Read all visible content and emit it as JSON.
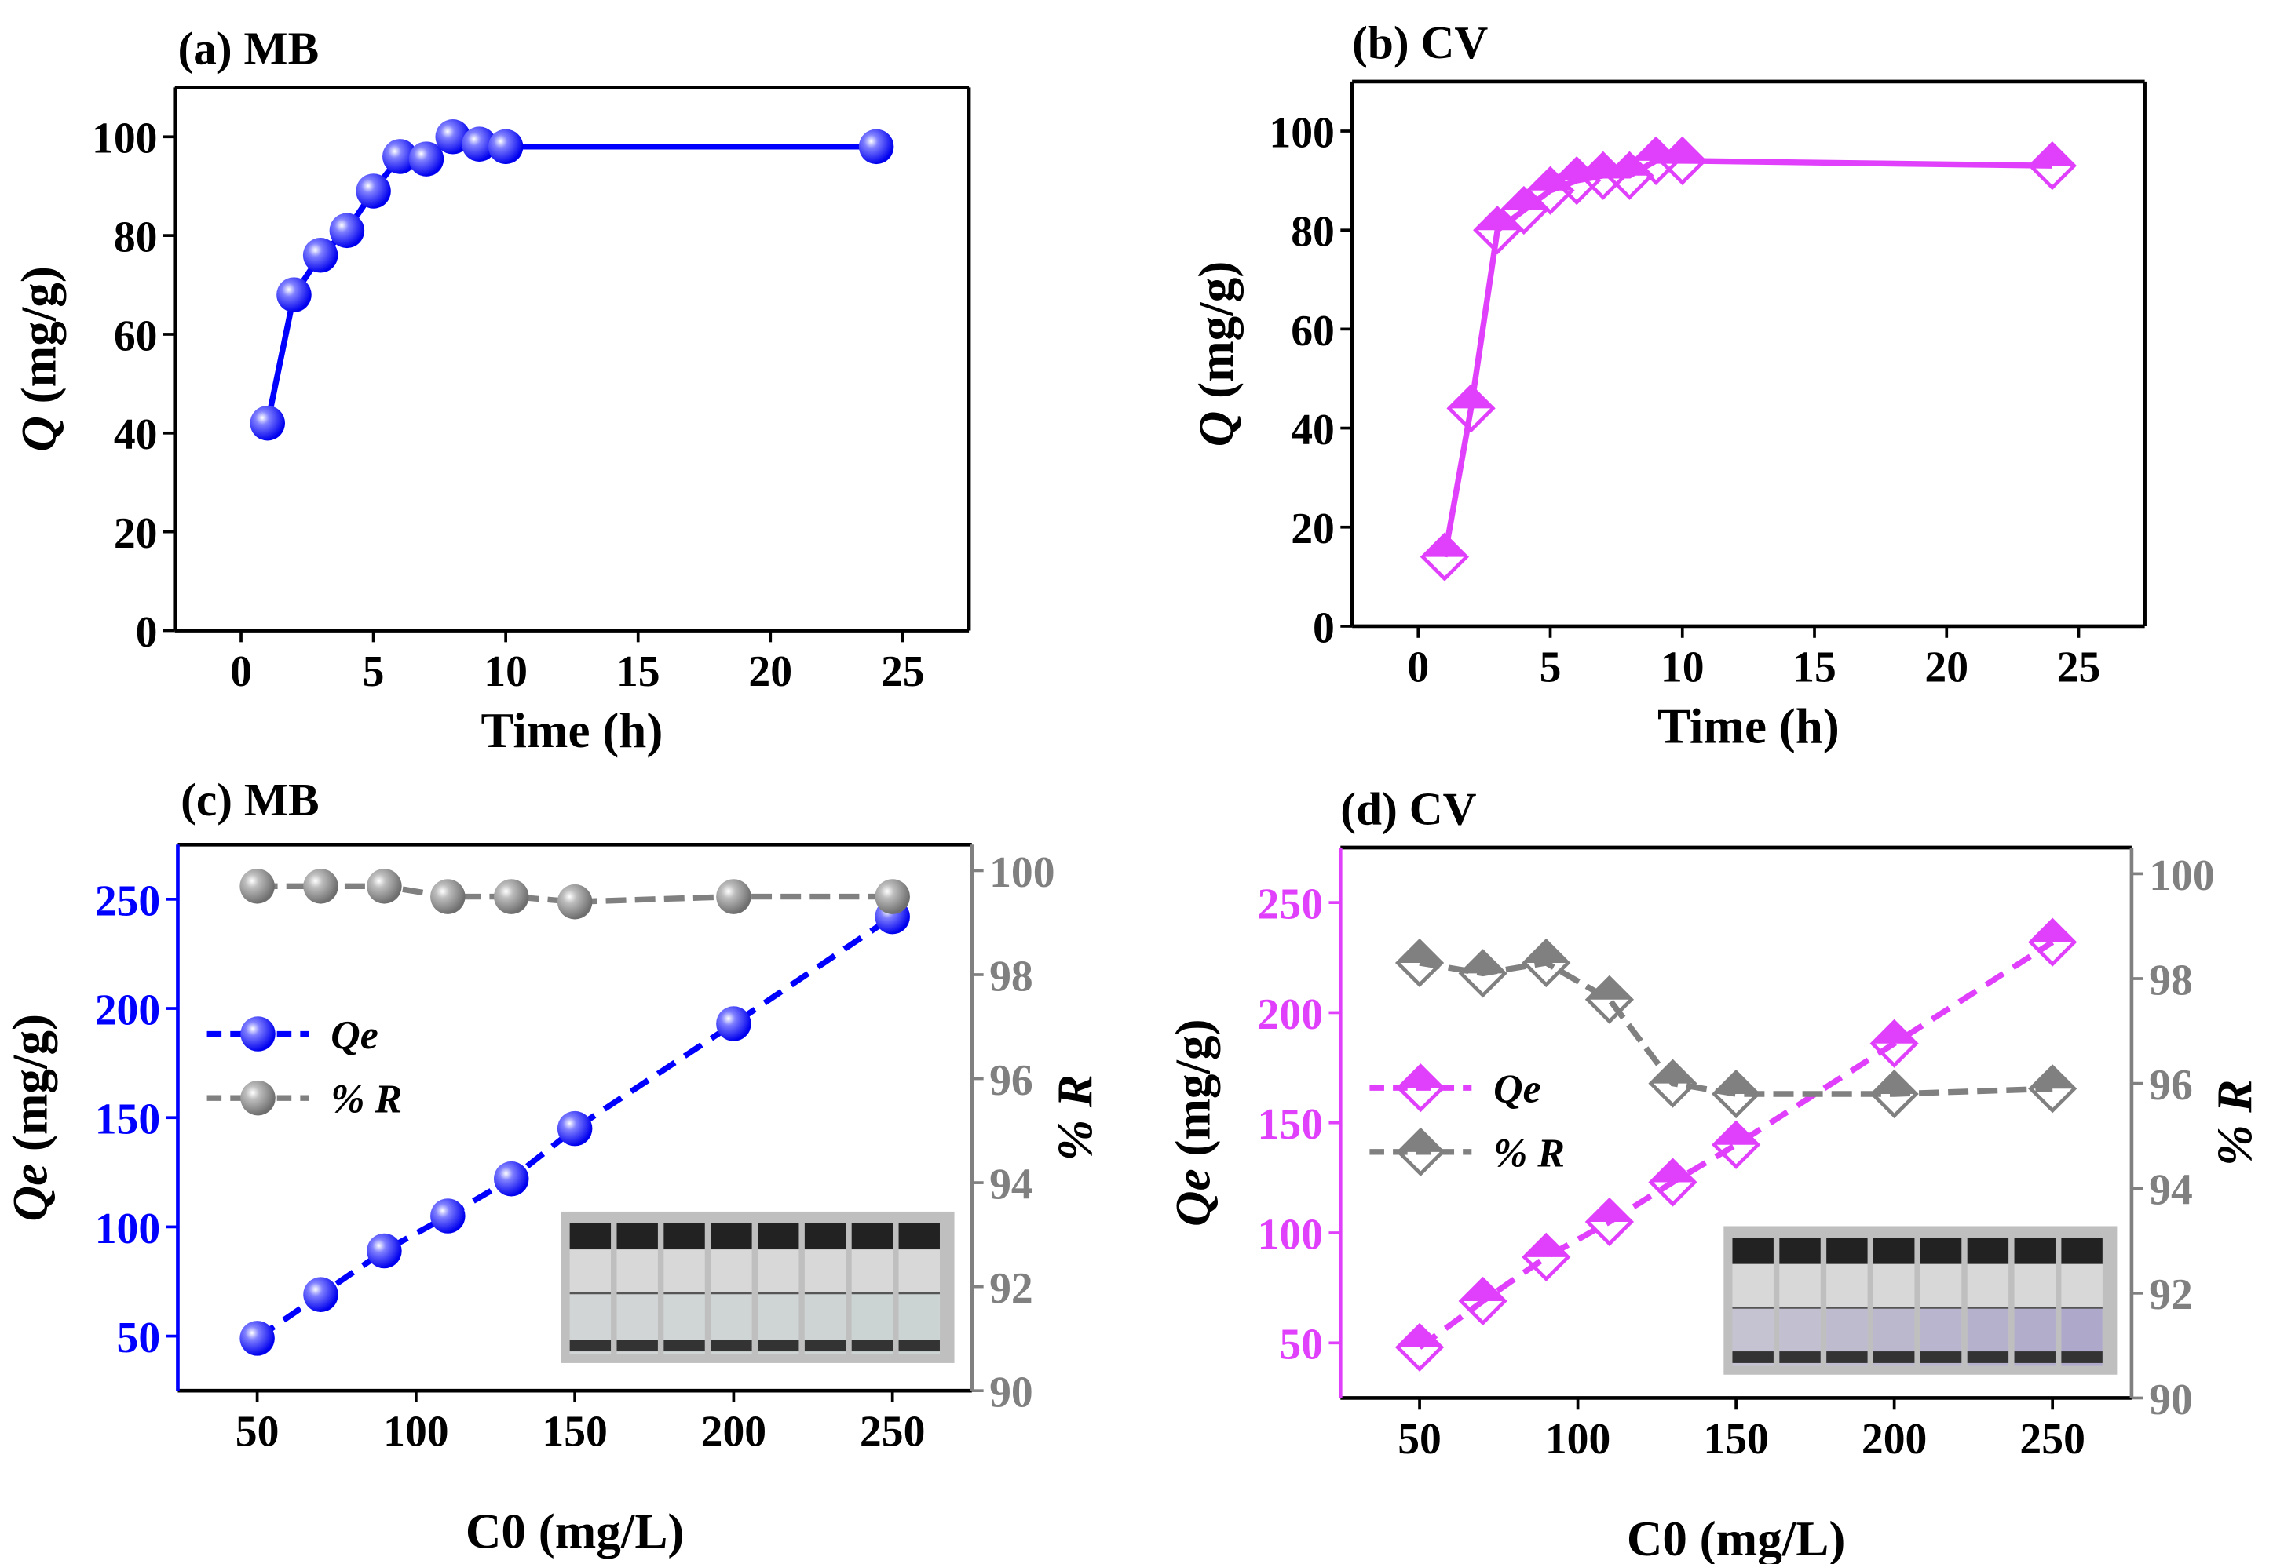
{
  "chart_data": [
    {
      "panel": "a",
      "type": "line",
      "title": "(a) MB",
      "xlabel": "Time (h)",
      "ylabel_main": "Q",
      "ylabel_unit": " (mg/g)",
      "xlim": [
        -2.5,
        27.5
      ],
      "ylim": [
        0,
        110
      ],
      "xticks": [
        0,
        5,
        10,
        15,
        20,
        25
      ],
      "yticks": [
        0,
        20,
        40,
        60,
        80,
        100
      ],
      "series": [
        {
          "name": "Q",
          "color": "#0000ff",
          "marker": "sphere",
          "x": [
            1,
            2,
            3,
            4,
            5,
            6,
            7,
            8,
            9,
            10,
            24
          ],
          "y": [
            42,
            68,
            76,
            81,
            89,
            96,
            95.5,
            100,
            98.5,
            98,
            98
          ]
        }
      ]
    },
    {
      "panel": "b",
      "type": "line",
      "title": "(b) CV",
      "xlabel": "Time (h)",
      "ylabel_main": "Q",
      "ylabel_unit": " (mg/g)",
      "xlim": [
        -2.5,
        27.5
      ],
      "ylim": [
        0,
        110
      ],
      "xticks": [
        0,
        5,
        10,
        15,
        20,
        25
      ],
      "yticks": [
        0,
        20,
        40,
        60,
        80,
        100
      ],
      "series": [
        {
          "name": "Q",
          "color": "#e040fb",
          "marker": "diamond",
          "x": [
            1,
            2,
            3,
            4,
            5,
            6,
            7,
            8,
            9,
            10,
            24
          ],
          "y": [
            14,
            44,
            80,
            84,
            88,
            90,
            91,
            91,
            94,
            94,
            93
          ]
        }
      ]
    },
    {
      "panel": "c",
      "type": "line",
      "title": "(c) MB",
      "xlabel": "C0 (mg/L)",
      "ylabel_main": "Qe",
      "ylabel_unit": " (mg/g)",
      "y2label": "% R",
      "xlim": [
        25,
        275
      ],
      "ylim": [
        25,
        275
      ],
      "y2lim": [
        90,
        100.5
      ],
      "xticks": [
        50,
        100,
        150,
        200,
        250
      ],
      "yticks": [
        50,
        100,
        150,
        200,
        250
      ],
      "y2ticks": [
        90,
        92,
        94,
        96,
        98,
        100
      ],
      "left_axis_color": "#0000ff",
      "right_axis_color": "#808080",
      "legend": [
        "Qe",
        "% R"
      ],
      "legend_position": "center-left",
      "series": [
        {
          "name": "Qe",
          "axis": "left",
          "color": "#0000ff",
          "marker": "sphere",
          "x": [
            50,
            70,
            90,
            110,
            130,
            150,
            200,
            250
          ],
          "y": [
            49,
            69,
            89,
            105,
            122,
            145,
            193,
            242
          ]
        },
        {
          "name": "% R",
          "axis": "right",
          "color": "#808080",
          "marker": "sphere",
          "x": [
            50,
            70,
            90,
            110,
            130,
            150,
            200,
            250
          ],
          "y": [
            99.7,
            99.7,
            99.7,
            99.5,
            99.5,
            99.4,
            99.5,
            99.5
          ]
        }
      ],
      "inset": "photo of 8 vials, nearly colorless solutions"
    },
    {
      "panel": "d",
      "type": "line",
      "title": "(d) CV",
      "xlabel": "C0 (mg/L)",
      "ylabel_main": "Qe",
      "ylabel_unit": " (mg/g)",
      "y2label": "% R",
      "xlim": [
        25,
        275
      ],
      "ylim": [
        25,
        275
      ],
      "y2lim": [
        90,
        100.5
      ],
      "xticks": [
        50,
        100,
        150,
        200,
        250
      ],
      "yticks": [
        50,
        100,
        150,
        200,
        250
      ],
      "y2ticks": [
        90,
        92,
        94,
        96,
        98,
        100
      ],
      "left_axis_color": "#e040fb",
      "right_axis_color": "#808080",
      "legend": [
        "Qe",
        "% R"
      ],
      "legend_position": "center-left",
      "series": [
        {
          "name": "Qe",
          "axis": "left",
          "color": "#e040fb",
          "marker": "diamond",
          "x": [
            50,
            70,
            90,
            110,
            130,
            150,
            200,
            250
          ],
          "y": [
            48,
            69,
            89,
            105,
            123,
            140,
            186,
            232
          ]
        },
        {
          "name": "% R",
          "axis": "right",
          "color": "#808080",
          "marker": "diamond",
          "x": [
            50,
            70,
            90,
            110,
            130,
            150,
            200,
            250
          ],
          "y": [
            98.3,
            98.1,
            98.3,
            97.6,
            96.0,
            95.8,
            95.8,
            95.9
          ]
        }
      ],
      "inset": "photo of 8 vials, faint violet solutions"
    }
  ]
}
